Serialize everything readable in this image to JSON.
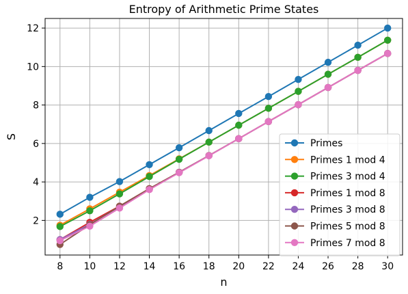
{
  "chart_data": {
    "type": "line",
    "title": "Entropy of Arithmetic Prime States",
    "xlabel": "n",
    "ylabel": "S",
    "xlim": [
      7,
      31
    ],
    "ylim": [
      0.2,
      12.5
    ],
    "xticks": [
      8,
      10,
      12,
      14,
      16,
      18,
      20,
      22,
      24,
      26,
      28,
      30
    ],
    "yticks": [
      2,
      4,
      6,
      8,
      10,
      12
    ],
    "grid": true,
    "legend_position": "lower-right",
    "x": [
      8,
      10,
      12,
      14,
      16,
      18,
      20,
      22,
      24,
      26,
      28,
      30
    ],
    "series": [
      {
        "name": "Primes",
        "color": "#1f77b4",
        "values": [
          2.32,
          3.2,
          4.02,
          4.9,
          5.78,
          6.67,
          7.56,
          8.44,
          9.33,
          10.22,
          11.11,
          12.0
        ]
      },
      {
        "name": "Primes 1 mod 4",
        "color": "#ff7f0e",
        "values": [
          1.75,
          2.6,
          3.47,
          4.33,
          5.2,
          6.07,
          6.95,
          7.83,
          8.71,
          9.6,
          10.48,
          11.37
        ]
      },
      {
        "name": "Primes 3 mod 4",
        "color": "#2ca02c",
        "values": [
          1.68,
          2.5,
          3.38,
          4.28,
          5.18,
          6.07,
          6.95,
          7.83,
          8.71,
          9.6,
          10.48,
          11.37
        ]
      },
      {
        "name": "Primes 1 mod 8",
        "color": "#d62728",
        "values": [
          1.0,
          1.9,
          2.74,
          3.65,
          4.5,
          5.37,
          6.25,
          7.14,
          8.02,
          8.91,
          9.8,
          10.68
        ]
      },
      {
        "name": "Primes 3 mod 8",
        "color": "#9467bd",
        "values": [
          1.0,
          1.8,
          2.72,
          3.62,
          4.5,
          5.37,
          6.25,
          7.14,
          8.02,
          8.91,
          9.8,
          10.68
        ]
      },
      {
        "name": "Primes 5 mod 8",
        "color": "#8c564b",
        "values": [
          0.75,
          1.78,
          2.74,
          3.65,
          4.5,
          5.37,
          6.25,
          7.14,
          8.02,
          8.91,
          9.8,
          10.68
        ]
      },
      {
        "name": "Primes 7 mod 8",
        "color": "#e377c2",
        "values": [
          0.95,
          1.7,
          2.64,
          3.6,
          4.48,
          5.36,
          6.25,
          7.14,
          8.02,
          8.91,
          9.8,
          10.68
        ]
      }
    ]
  }
}
